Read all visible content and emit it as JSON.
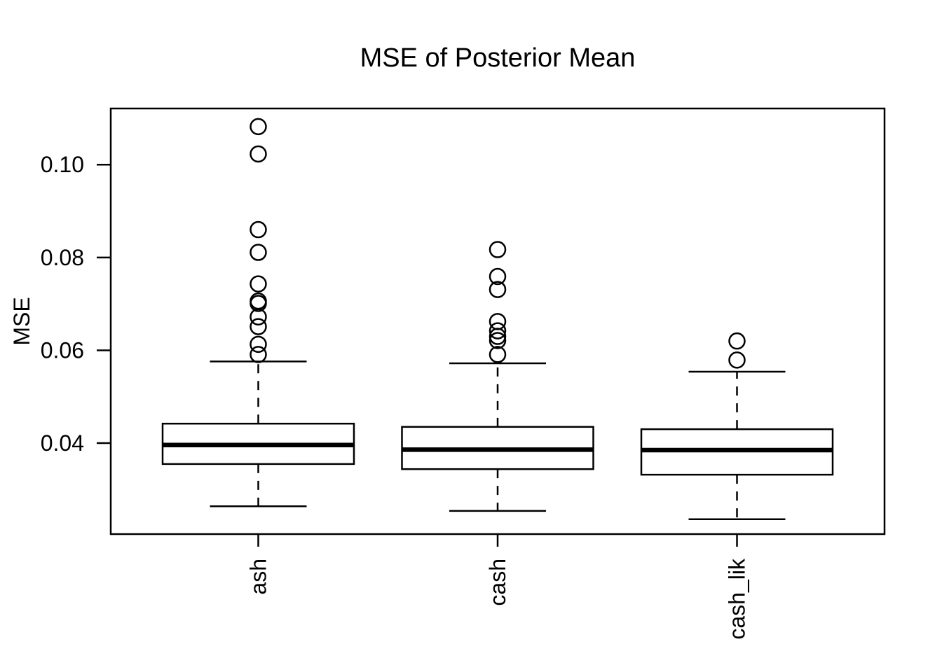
{
  "chart_data": {
    "type": "boxplot",
    "title": "MSE of Posterior Mean",
    "ylabel": "MSE",
    "xlabel": "",
    "categories": [
      "ash",
      "cash",
      "cash_lik"
    ],
    "ylim": [
      0.0204,
      0.1121
    ],
    "yticks": [
      0.04,
      0.06,
      0.08,
      0.1
    ],
    "ytick_labels": [
      "0.04",
      "0.06",
      "0.08",
      "0.10"
    ],
    "grid": false,
    "legend": false,
    "x_labels_rotated": true,
    "colors": {
      "stroke": "#000000",
      "box_fill": "#ffffff",
      "background": "#ffffff"
    },
    "series": [
      {
        "name": "ash",
        "q1": 0.0355,
        "median": 0.0396,
        "q3": 0.0442,
        "whisker_low": 0.0264,
        "whisker_high": 0.0576,
        "outliers": [
          0.0591,
          0.0613,
          0.0651,
          0.0672,
          0.0701,
          0.0706,
          0.0743,
          0.0811,
          0.086,
          0.1023,
          0.1082
        ]
      },
      {
        "name": "cash",
        "q1": 0.0344,
        "median": 0.0386,
        "q3": 0.0435,
        "whisker_low": 0.0254,
        "whisker_high": 0.0572,
        "outliers": [
          0.0591,
          0.0621,
          0.063,
          0.0642,
          0.0662,
          0.0731,
          0.0759,
          0.0817
        ]
      },
      {
        "name": "cash_lik",
        "q1": 0.0332,
        "median": 0.0385,
        "q3": 0.043,
        "whisker_low": 0.0236,
        "whisker_high": 0.0554,
        "outliers": [
          0.0579,
          0.062
        ]
      }
    ]
  }
}
